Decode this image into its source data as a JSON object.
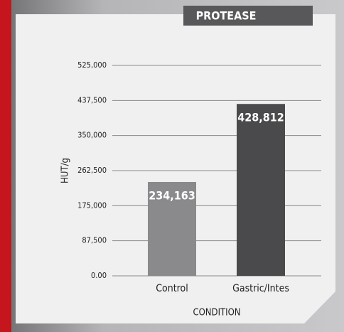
{
  "chart_data": {
    "type": "bar",
    "title": "PROTEASE",
    "y_label": "HUT/g",
    "x_label": "CONDITION",
    "categories": [
      "Control",
      "Gastric/Intes"
    ],
    "values": [
      234163,
      428812
    ],
    "value_labels": [
      "234,163",
      "428,812"
    ],
    "colors": [
      "#8a8a8c",
      "#4a4a4c"
    ],
    "ylim": [
      0,
      525000
    ],
    "yticks": [
      {
        "value": 0,
        "label": "0.00"
      },
      {
        "value": 87500,
        "label": "87,500"
      },
      {
        "value": 175000,
        "label": "175,000"
      },
      {
        "value": 262500,
        "label": "262,500"
      },
      {
        "value": 350000,
        "label": "350,000"
      },
      {
        "value": 437500,
        "label": "437,500"
      },
      {
        "value": 525000,
        "label": "525,000"
      }
    ],
    "grid": true
  }
}
